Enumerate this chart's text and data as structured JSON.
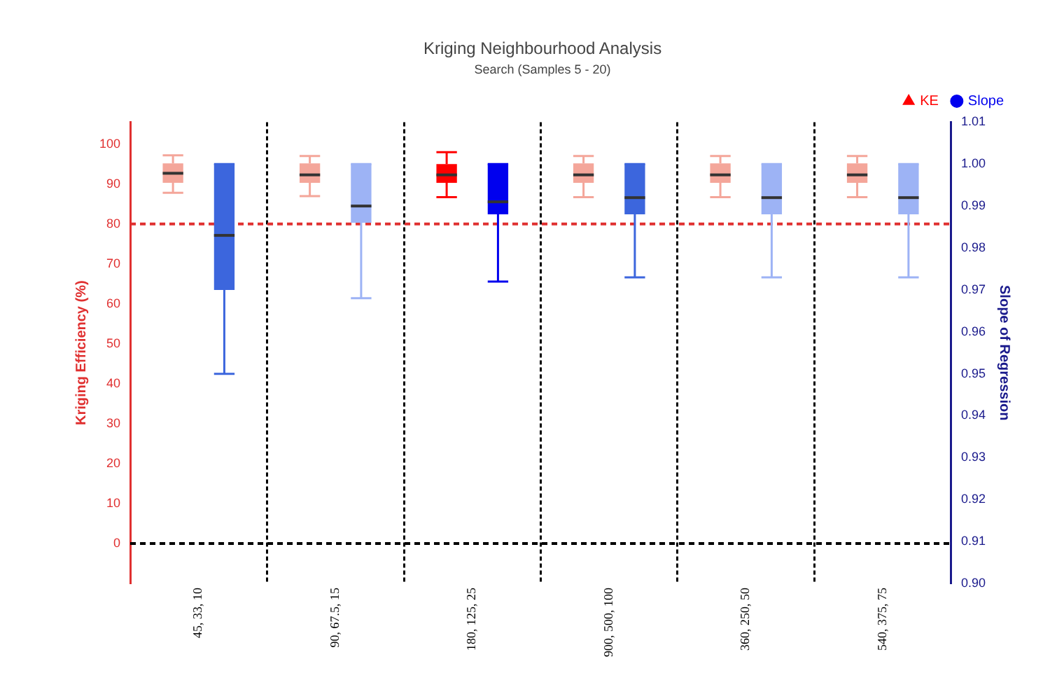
{
  "chart_data": {
    "type": "box",
    "title": "Kriging Neighbourhood Analysis",
    "subtitle": "Search (Samples 5 - 20)",
    "categories": [
      "45, 33, 10",
      "90, 67.5, 15",
      "180, 125, 25",
      "900, 500, 100",
      "360, 250, 50",
      "540, 375, 75"
    ],
    "ylabel": "Kriging Efficiency (%)",
    "y2label": "Slope of Regression",
    "ylim": [
      -10,
      105.5
    ],
    "yticks": [
      0,
      10,
      20,
      30,
      40,
      50,
      60,
      70,
      80,
      90,
      100
    ],
    "y2lim": [
      0.9,
      1.01
    ],
    "y2ticks": [
      {
        "value": 0.9,
        "label": "0.90"
      },
      {
        "value": 0.91,
        "label": "0.91"
      },
      {
        "value": 0.92,
        "label": "0.92"
      },
      {
        "value": 0.93,
        "label": "0.93"
      },
      {
        "value": 0.94,
        "label": "0.94"
      },
      {
        "value": 0.95,
        "label": "0.95"
      },
      {
        "value": 0.96,
        "label": "0.96"
      },
      {
        "value": 0.97,
        "label": "0.97"
      },
      {
        "value": 0.98,
        "label": "0.98"
      },
      {
        "value": 0.99,
        "label": "0.99"
      },
      {
        "value": 1.0,
        "label": "1.00"
      },
      {
        "value": 1.01,
        "label": "1.01"
      }
    ],
    "grid": "x",
    "legend": "top right",
    "ref_lines": [
      {
        "axis": "y",
        "value": 80,
        "color": "#e03030",
        "line_style": "dashed"
      },
      {
        "axis": "y",
        "value": 0,
        "color": "#000000",
        "line_style": "dashed"
      }
    ],
    "series": [
      {
        "name": "KE",
        "color": "#ff0000",
        "marker": "triangle",
        "axis": "y",
        "colors": [
          "#f4a69a",
          "#f4a69a",
          "#ff0000",
          "#f4a69a",
          "#f4a69a",
          "#f4a69a"
        ],
        "boxes": [
          {
            "low": 87.8,
            "q1": 90.3,
            "median": 92.7,
            "q3": 95.2,
            "high": 97.2
          },
          {
            "low": 87,
            "q1": 90.3,
            "median": 92.3,
            "q3": 95.2,
            "high": 97
          },
          {
            "low": 86.7,
            "q1": 90.3,
            "median": 92.3,
            "q3": 95,
            "high": 98
          },
          {
            "low": 86.7,
            "q1": 90.3,
            "median": 92.3,
            "q3": 95.2,
            "high": 97
          },
          {
            "low": 86.7,
            "q1": 90.3,
            "median": 92.3,
            "q3": 95.2,
            "high": 97
          },
          {
            "low": 86.7,
            "q1": 90.3,
            "median": 92.3,
            "q3": 95.2,
            "high": 97
          }
        ]
      },
      {
        "name": "Slope",
        "color": "#0000ee",
        "marker": "circle",
        "axis": "y2",
        "colors": [
          "#3c66dd",
          "#9db3f5",
          "#0000ee",
          "#3c66dd",
          "#9db3f5",
          "#9db3f5"
        ],
        "boxes": [
          {
            "low": 0.95,
            "q1": 0.97,
            "median": 0.983,
            "q3": 1.0,
            "high": 1.0
          },
          {
            "low": 0.968,
            "q1": 0.986,
            "median": 0.99,
            "q3": 1.0,
            "high": 1.0
          },
          {
            "low": 0.972,
            "q1": 0.988,
            "median": 0.991,
            "q3": 1.0,
            "high": 1.0
          },
          {
            "low": 0.973,
            "q1": 0.988,
            "median": 0.992,
            "q3": 1.0,
            "high": 1.0
          },
          {
            "low": 0.973,
            "q1": 0.988,
            "median": 0.992,
            "q3": 1.0,
            "high": 1.0
          },
          {
            "low": 0.973,
            "q1": 0.988,
            "median": 0.992,
            "q3": 1.0,
            "high": 1.0
          }
        ]
      }
    ]
  }
}
